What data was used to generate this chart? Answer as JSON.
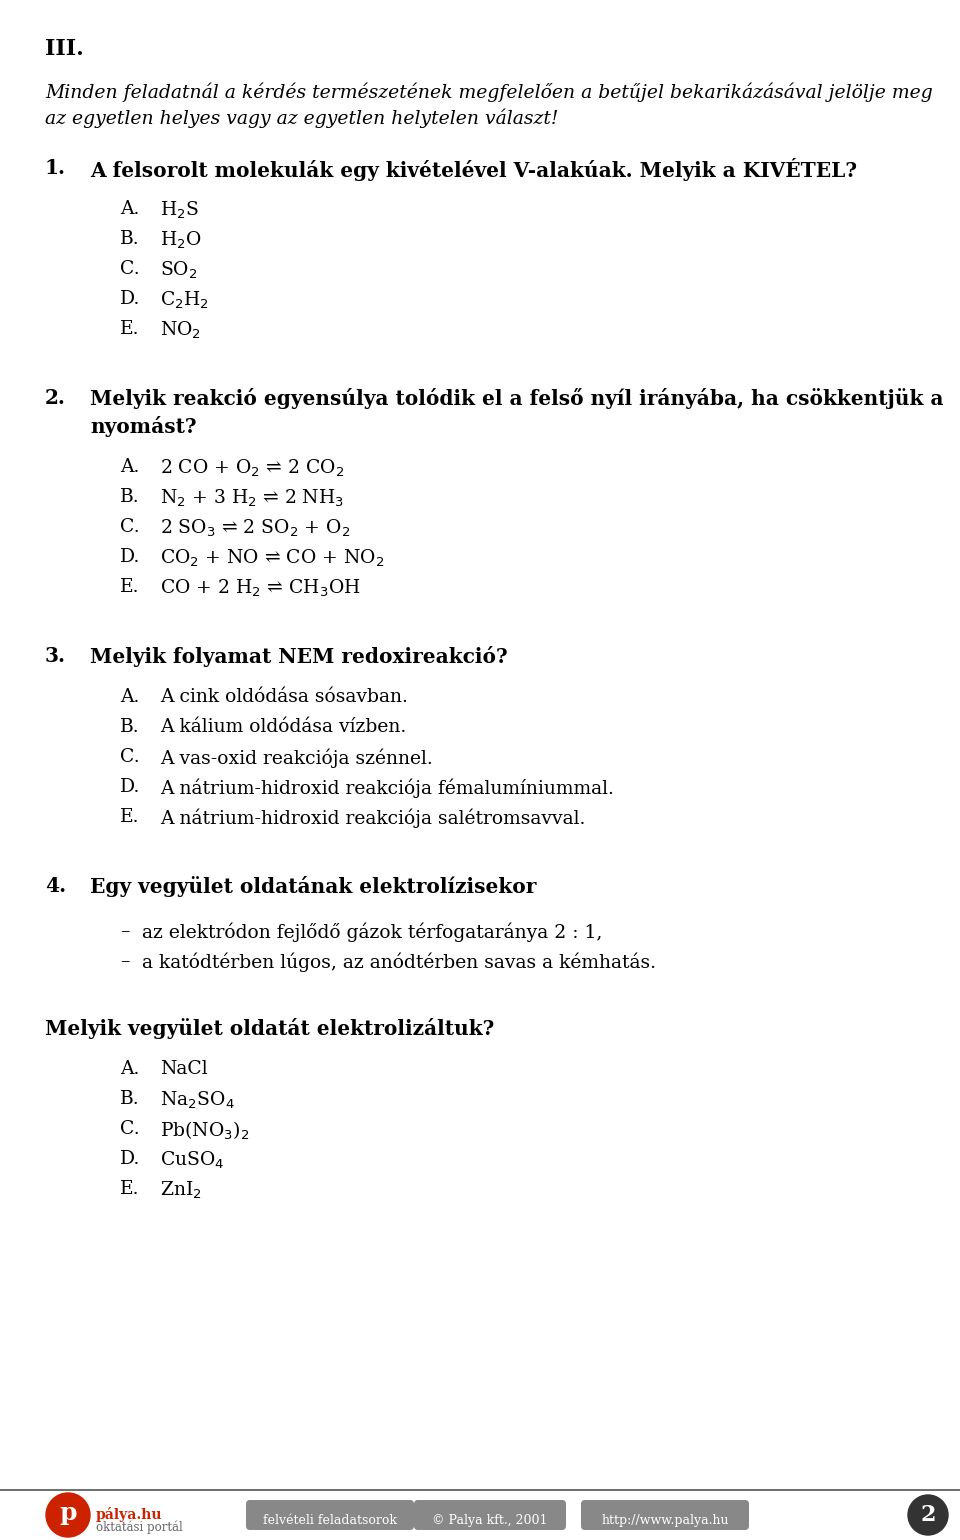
{
  "background_color": "#ffffff",
  "section_title": "III.",
  "intro_text_line1": "Minden feladatnál a kérdés természetének megfelelően a betűjel bekarikázásával jelölje meg",
  "intro_text_line2": "az egyetlen helyes vagy az egyetlen helytelen választ!",
  "q1_number": "1.",
  "q1_text": "A felsorolt molekulák egy kivételével V-alakúak. Melyik a KIVÉTEL?",
  "q1_options": [
    [
      "A.",
      "H$_2$S"
    ],
    [
      "B.",
      "H$_2$O"
    ],
    [
      "C.",
      "SO$_2$"
    ],
    [
      "D.",
      "C$_2$H$_2$"
    ],
    [
      "E.",
      "NO$_2$"
    ]
  ],
  "q2_number": "2.",
  "q2_text_line1": "Melyik reakció egyensúlya tolódik el a felső nyíl irányába, ha csökkentjük a",
  "q2_text_line2": "nyomást?",
  "q2_options": [
    [
      "A.",
      "2 CO + O$_2$ ⇌ 2 CO$_2$"
    ],
    [
      "B.",
      "N$_2$ + 3 H$_2$ ⇌ 2 NH$_3$"
    ],
    [
      "C.",
      "2 SO$_3$ ⇌ 2 SO$_2$ + O$_2$"
    ],
    [
      "D.",
      "CO$_2$ + NO ⇌ CO + NO$_2$"
    ],
    [
      "E.",
      "CO + 2 H$_2$ ⇌ CH$_3$OH"
    ]
  ],
  "q3_number": "3.",
  "q3_text": "Melyik folyamat NEM redoxireakció?",
  "q3_options": [
    [
      "A.",
      "A cink oldódása sósavban."
    ],
    [
      "B.",
      "A kálium oldódása vízben."
    ],
    [
      "C.",
      "A vas-oxid reakciója szénnel."
    ],
    [
      "D.",
      "A nátrium-hidroxid reakciója fémalumíniummal."
    ],
    [
      "E.",
      "A nátrium-hidroxid reakciója salétromsavval."
    ]
  ],
  "q4_number": "4.",
  "q4_text": "Egy vegyület oldatának elektrolízisekor",
  "q4_bullets": [
    "az elektródon fejlődő gázok térfogataránya 2 : 1,",
    "a katódtérben lúgos, az anódtérben savas a kémhatás."
  ],
  "q4_followup": "Melyik vegyület oldatát elektrolizáltuk?",
  "q4_options": [
    [
      "A.",
      "NaCl"
    ],
    [
      "B.",
      "Na$_2$SO$_4$"
    ],
    [
      "C.",
      "Pb(NO$_3$)$_2$"
    ],
    [
      "D.",
      "CuSO$_4$"
    ],
    [
      "E.",
      "ZnI$_2$"
    ]
  ],
  "footer_logo_color": "#cc2200",
  "footer_tag1_bg": "#888888",
  "footer_tag2_bg": "#888888",
  "footer_tag3_bg": "#888888",
  "footer_tag1": "felvételi feladatsorok",
  "footer_tag2": "© Palya kft., 2001",
  "footer_tag3": "http://www.palya.hu",
  "footer_palya": "pálya.hu",
  "footer_oktatasi": "oktatási portál",
  "footer_pagenum": "2",
  "footer_pagenum_bg": "#333333"
}
